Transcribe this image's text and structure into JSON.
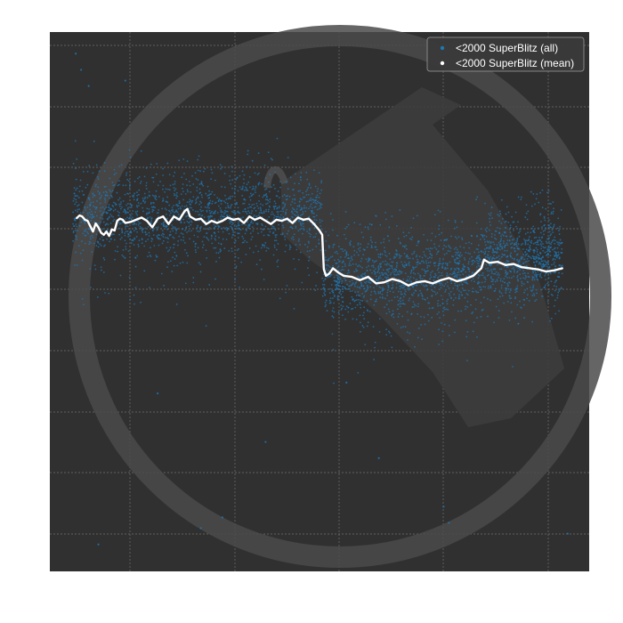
{
  "chart_data": {
    "type": "scatter",
    "title": "",
    "xlabel": "",
    "ylabel": "",
    "grid": true,
    "xlim": [
      0,
      1
    ],
    "ylim": [
      0,
      1
    ],
    "legend": {
      "position": "top-right",
      "entries": [
        {
          "label": "<2000 SuperBlitz (all)",
          "color": "#1f77b4",
          "marker": "scatter-point"
        },
        {
          "label": "<2000 SuperBlitz (mean)",
          "color": "#ffffff",
          "marker": "scatter-point"
        }
      ]
    },
    "series": [
      {
        "name": "<2000 SuperBlitz (all)",
        "kind": "scatter",
        "color": "#1f77b4",
        "segments": [
          {
            "x_range": [
              0.043,
              0.505
            ],
            "center": 0.66,
            "spread_upper": 0.74,
            "spread_lower": 0.57
          },
          {
            "x_range": [
              0.505,
              0.79
            ],
            "center": 0.55,
            "spread_upper": 0.63,
            "spread_lower": 0.49
          },
          {
            "x_range": [
              0.79,
              0.95
            ],
            "center": 0.58,
            "spread_upper": 0.67,
            "spread_lower": 0.53
          }
        ],
        "outliers": [
          [
            0.048,
            0.96
          ],
          [
            0.058,
            0.93
          ],
          [
            0.072,
            0.9
          ],
          [
            0.14,
            0.91
          ],
          [
            0.09,
            0.05
          ],
          [
            0.28,
            0.08
          ],
          [
            0.4,
            0.24
          ],
          [
            0.55,
            0.35
          ],
          [
            0.61,
            0.21
          ],
          [
            0.73,
            0.12
          ],
          [
            0.74,
            0.09
          ],
          [
            0.96,
            0.07
          ],
          [
            0.32,
            0.1
          ],
          [
            0.2,
            0.33
          ]
        ]
      },
      {
        "name": "<2000 SuperBlitz (mean)",
        "kind": "line",
        "color": "#ffffff",
        "points": [
          [
            0.05,
            0.655
          ],
          [
            0.055,
            0.66
          ],
          [
            0.06,
            0.658
          ],
          [
            0.065,
            0.652
          ],
          [
            0.07,
            0.65
          ],
          [
            0.075,
            0.64
          ],
          [
            0.08,
            0.63
          ],
          [
            0.085,
            0.645
          ],
          [
            0.09,
            0.638
          ],
          [
            0.095,
            0.628
          ],
          [
            0.1,
            0.624
          ],
          [
            0.105,
            0.63
          ],
          [
            0.11,
            0.622
          ],
          [
            0.115,
            0.634
          ],
          [
            0.12,
            0.632
          ],
          [
            0.125,
            0.65
          ],
          [
            0.13,
            0.654
          ],
          [
            0.135,
            0.652
          ],
          [
            0.14,
            0.646
          ],
          [
            0.15,
            0.648
          ],
          [
            0.16,
            0.652
          ],
          [
            0.17,
            0.656
          ],
          [
            0.18,
            0.65
          ],
          [
            0.19,
            0.638
          ],
          [
            0.2,
            0.654
          ],
          [
            0.21,
            0.658
          ],
          [
            0.22,
            0.644
          ],
          [
            0.23,
            0.658
          ],
          [
            0.24,
            0.652
          ],
          [
            0.25,
            0.668
          ],
          [
            0.255,
            0.672
          ],
          [
            0.26,
            0.658
          ],
          [
            0.27,
            0.652
          ],
          [
            0.28,
            0.654
          ],
          [
            0.29,
            0.644
          ],
          [
            0.3,
            0.65
          ],
          [
            0.31,
            0.646
          ],
          [
            0.32,
            0.65
          ],
          [
            0.33,
            0.656
          ],
          [
            0.34,
            0.652
          ],
          [
            0.35,
            0.654
          ],
          [
            0.36,
            0.646
          ],
          [
            0.37,
            0.658
          ],
          [
            0.38,
            0.652
          ],
          [
            0.39,
            0.656
          ],
          [
            0.4,
            0.65
          ],
          [
            0.41,
            0.644
          ],
          [
            0.42,
            0.652
          ],
          [
            0.43,
            0.65
          ],
          [
            0.44,
            0.654
          ],
          [
            0.45,
            0.646
          ],
          [
            0.46,
            0.656
          ],
          [
            0.47,
            0.652
          ],
          [
            0.48,
            0.654
          ],
          [
            0.49,
            0.644
          ],
          [
            0.5,
            0.632
          ],
          [
            0.505,
            0.624
          ],
          [
            0.508,
            0.56
          ],
          [
            0.512,
            0.548
          ],
          [
            0.518,
            0.552
          ],
          [
            0.525,
            0.562
          ],
          [
            0.535,
            0.554
          ],
          [
            0.545,
            0.548
          ],
          [
            0.56,
            0.546
          ],
          [
            0.575,
            0.54
          ],
          [
            0.59,
            0.546
          ],
          [
            0.605,
            0.534
          ],
          [
            0.62,
            0.536
          ],
          [
            0.635,
            0.542
          ],
          [
            0.65,
            0.538
          ],
          [
            0.665,
            0.53
          ],
          [
            0.68,
            0.536
          ],
          [
            0.695,
            0.538
          ],
          [
            0.71,
            0.534
          ],
          [
            0.725,
            0.54
          ],
          [
            0.74,
            0.544
          ],
          [
            0.755,
            0.538
          ],
          [
            0.77,
            0.542
          ],
          [
            0.785,
            0.548
          ],
          [
            0.8,
            0.562
          ],
          [
            0.805,
            0.578
          ],
          [
            0.815,
            0.572
          ],
          [
            0.83,
            0.574
          ],
          [
            0.845,
            0.568
          ],
          [
            0.86,
            0.57
          ],
          [
            0.875,
            0.564
          ],
          [
            0.89,
            0.562
          ],
          [
            0.905,
            0.56
          ],
          [
            0.92,
            0.556
          ],
          [
            0.935,
            0.558
          ],
          [
            0.95,
            0.562
          ]
        ]
      }
    ]
  }
}
